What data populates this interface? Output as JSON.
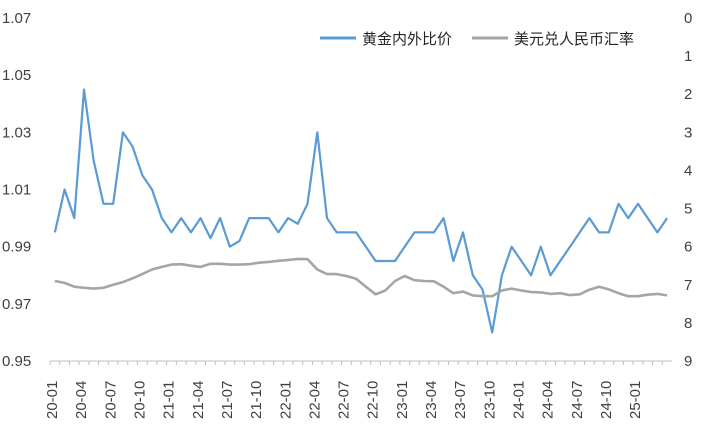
{
  "chart_data": {
    "type": "line",
    "legend_position": "top-right",
    "grid": false,
    "series": [
      {
        "name": "黄金内外比价",
        "axis": "left",
        "color": "#5B9BD5",
        "x": [
          "20-01",
          "20-02",
          "20-03",
          "20-04",
          "20-05",
          "20-06",
          "20-07",
          "20-08",
          "20-09",
          "20-10",
          "20-11",
          "20-12",
          "21-01",
          "21-02",
          "21-03",
          "21-04",
          "21-05",
          "21-06",
          "21-07",
          "21-08",
          "21-09",
          "21-10",
          "21-11",
          "21-12",
          "22-01",
          "22-02",
          "22-03",
          "22-04",
          "22-05",
          "22-06",
          "22-07",
          "22-08",
          "22-09",
          "22-10",
          "22-11",
          "22-12",
          "23-01",
          "23-02",
          "23-03",
          "23-04",
          "23-05",
          "23-06",
          "23-07",
          "23-08",
          "23-09",
          "23-10",
          "23-11",
          "23-12",
          "24-01",
          "24-02",
          "24-03",
          "24-04",
          "24-05",
          "24-06",
          "24-07",
          "24-08",
          "24-09",
          "24-10",
          "24-11",
          "24-12",
          "25-01",
          "25-02",
          "25-03",
          "25-04"
        ],
        "values": [
          0.995,
          1.01,
          1.0,
          1.045,
          1.02,
          1.005,
          1.005,
          1.03,
          1.025,
          1.015,
          1.01,
          1.0,
          0.995,
          1.0,
          0.995,
          1.0,
          0.993,
          1.0,
          0.99,
          0.992,
          1.0,
          1.0,
          1.0,
          0.995,
          1.0,
          0.998,
          1.005,
          1.03,
          1.0,
          0.995,
          0.995,
          0.995,
          0.99,
          0.985,
          0.985,
          0.985,
          0.99,
          0.995,
          0.995,
          0.995,
          1.0,
          0.985,
          0.995,
          0.98,
          0.975,
          0.96,
          0.98,
          0.99,
          0.985,
          0.98,
          0.99,
          0.98,
          0.985,
          0.99,
          0.995,
          1.0,
          0.995,
          0.995,
          1.005,
          1.0,
          1.005,
          1.0,
          0.995,
          1.0
        ]
      },
      {
        "name": "美元兑人民币汇率",
        "axis": "right",
        "color": "#A5A5A5",
        "x": [
          "20-01",
          "20-02",
          "20-03",
          "20-04",
          "20-05",
          "20-06",
          "20-07",
          "20-08",
          "20-09",
          "20-10",
          "20-11",
          "20-12",
          "21-01",
          "21-02",
          "21-03",
          "21-04",
          "21-05",
          "21-06",
          "21-07",
          "21-08",
          "21-09",
          "21-10",
          "21-11",
          "21-12",
          "22-01",
          "22-02",
          "22-03",
          "22-04",
          "22-05",
          "22-06",
          "22-07",
          "22-08",
          "22-09",
          "22-10",
          "22-11",
          "22-12",
          "23-01",
          "23-02",
          "23-03",
          "23-04",
          "23-05",
          "23-06",
          "23-07",
          "23-08",
          "23-09",
          "23-10",
          "23-11",
          "23-12",
          "24-01",
          "24-02",
          "24-03",
          "24-04",
          "24-05",
          "24-06",
          "24-07",
          "24-08",
          "24-09",
          "24-10",
          "24-11",
          "24-12",
          "25-01",
          "25-02",
          "25-03",
          "25-04"
        ],
        "values": [
          6.9,
          6.95,
          7.05,
          7.08,
          7.1,
          7.08,
          7.0,
          6.93,
          6.83,
          6.72,
          6.6,
          6.53,
          6.47,
          6.46,
          6.5,
          6.53,
          6.45,
          6.45,
          6.47,
          6.47,
          6.46,
          6.42,
          6.4,
          6.37,
          6.35,
          6.32,
          6.33,
          6.6,
          6.72,
          6.72,
          6.77,
          6.84,
          7.05,
          7.25,
          7.15,
          6.9,
          6.77,
          6.88,
          6.9,
          6.91,
          7.05,
          7.22,
          7.18,
          7.28,
          7.3,
          7.3,
          7.15,
          7.1,
          7.15,
          7.19,
          7.2,
          7.24,
          7.22,
          7.27,
          7.25,
          7.13,
          7.05,
          7.12,
          7.22,
          7.3,
          7.3,
          7.26,
          7.24,
          7.28
        ]
      }
    ],
    "y_left": {
      "min": 0.95,
      "max": 1.07,
      "ticks": [
        "0.95",
        "0.97",
        "0.99",
        "1.01",
        "1.03",
        "1.05",
        "1.07"
      ]
    },
    "y_right": {
      "min": 0,
      "max": 9,
      "inverted": true,
      "ticks": [
        "0",
        "1",
        "2",
        "3",
        "4",
        "5",
        "6",
        "7",
        "8",
        "9"
      ]
    },
    "x_tick_labels": [
      "20-01",
      "20-04",
      "20-07",
      "20-10",
      "21-01",
      "21-04",
      "21-07",
      "21-10",
      "22-01",
      "22-04",
      "22-07",
      "22-10",
      "23-01",
      "23-04",
      "23-07",
      "23-10",
      "24-01",
      "24-04",
      "24-07",
      "24-10",
      "25-01"
    ]
  }
}
